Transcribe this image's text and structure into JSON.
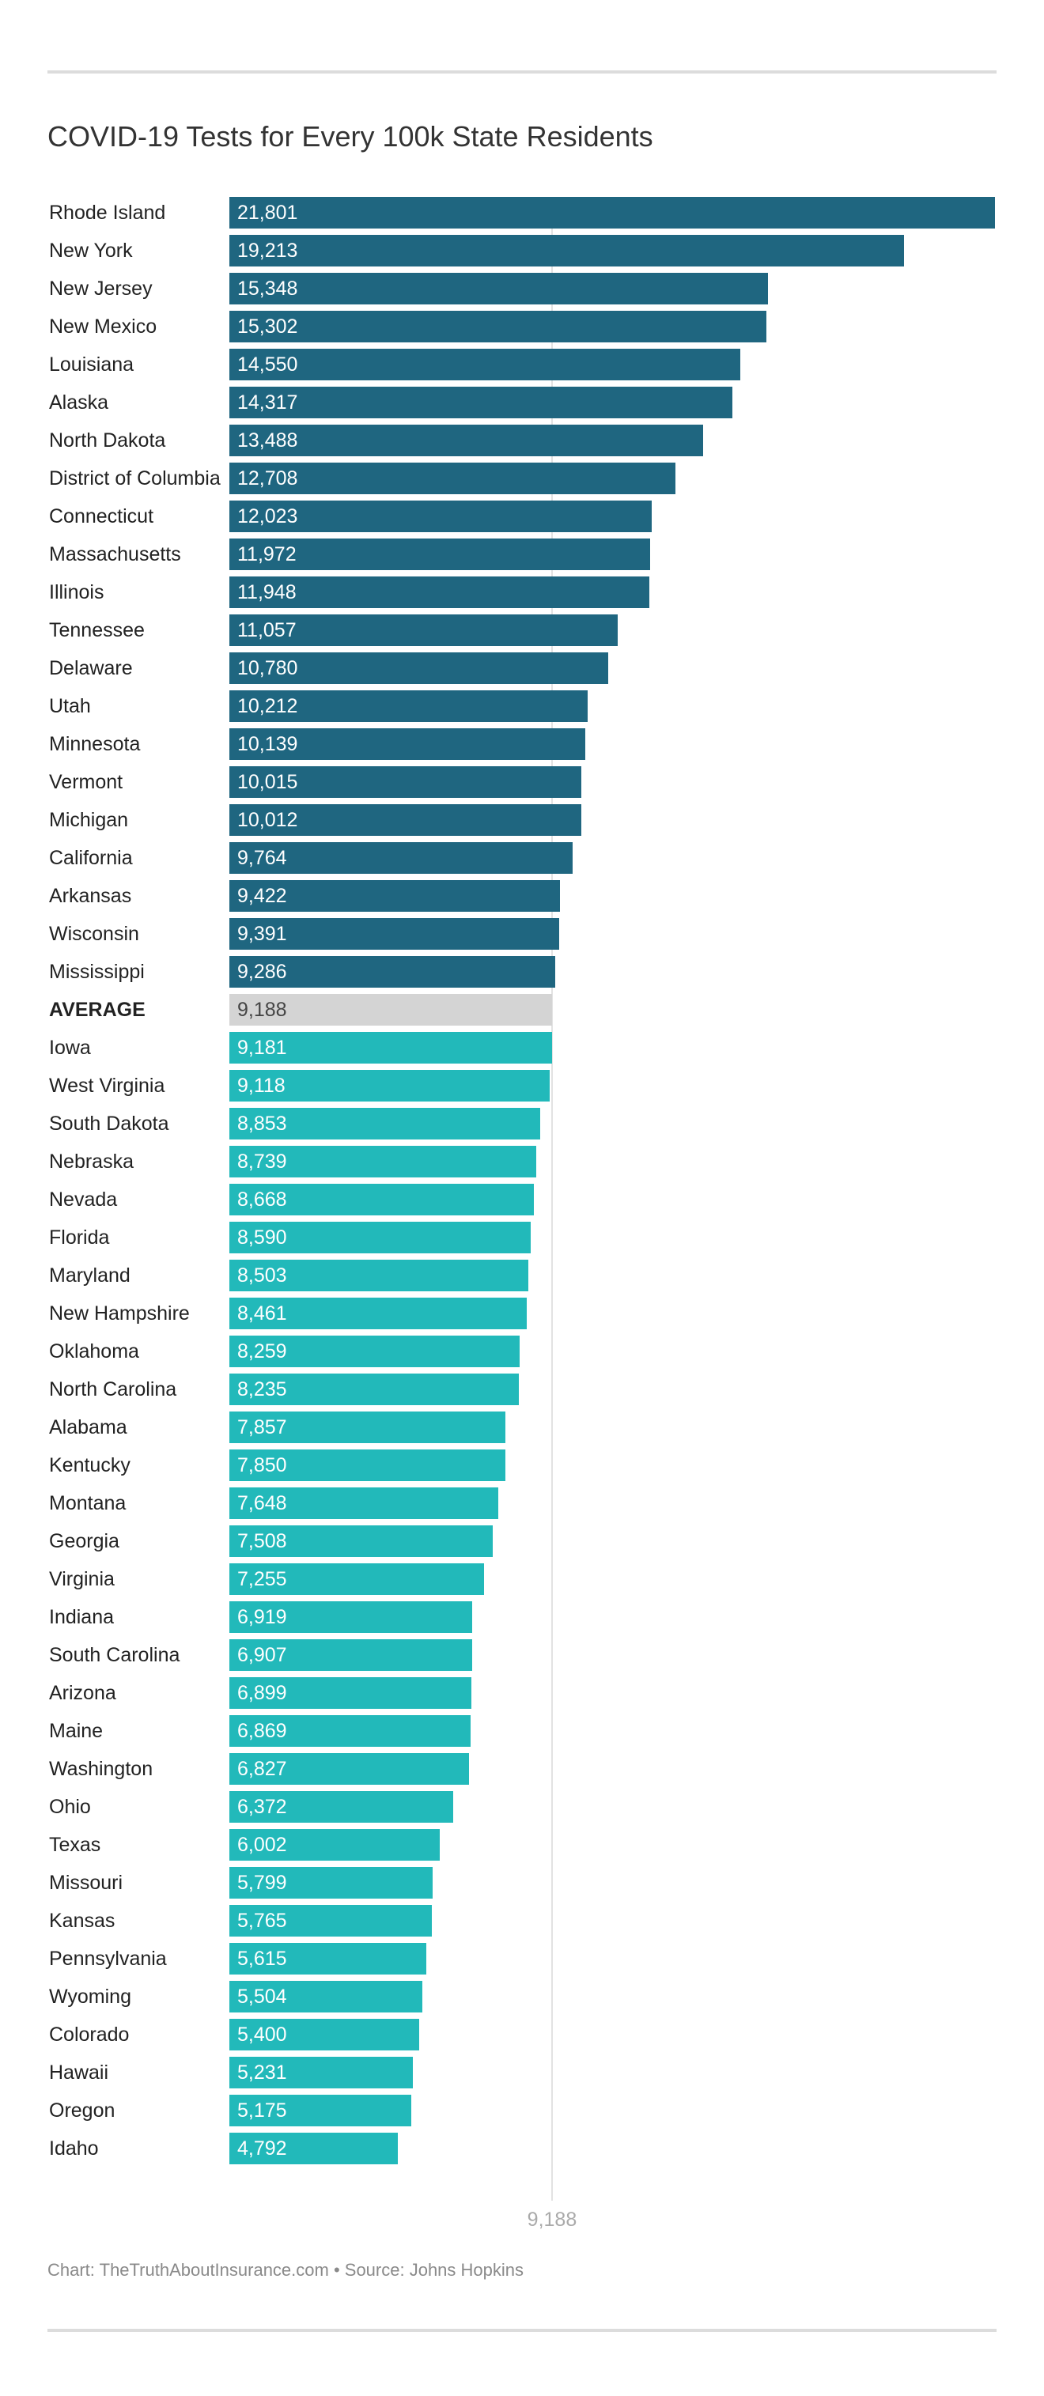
{
  "chart_data": {
    "type": "bar",
    "orientation": "horizontal",
    "title": "COVID-19 Tests for Every 100k State Residents",
    "categories": [
      "Rhode Island",
      "New York",
      "New Jersey",
      "New Mexico",
      "Louisiana",
      "Alaska",
      "North Dakota",
      "District of Columbia",
      "Connecticut",
      "Massachusetts",
      "Illinois",
      "Tennessee",
      "Delaware",
      "Utah",
      "Minnesota",
      "Vermont",
      "Michigan",
      "California",
      "Arkansas",
      "Wisconsin",
      "Mississippi",
      "AVERAGE",
      "Iowa",
      "West Virginia",
      "South Dakota",
      "Nebraska",
      "Nevada",
      "Florida",
      "Maryland",
      "New Hampshire",
      "Oklahoma",
      "North Carolina",
      "Alabama",
      "Kentucky",
      "Montana",
      "Georgia",
      "Virginia",
      "Indiana",
      "South Carolina",
      "Arizona",
      "Maine",
      "Washington",
      "Ohio",
      "Texas",
      "Missouri",
      "Kansas",
      "Pennsylvania",
      "Wyoming",
      "Colorado",
      "Hawaii",
      "Oregon",
      "Idaho"
    ],
    "values": [
      21801,
      19213,
      15348,
      15302,
      14550,
      14317,
      13488,
      12708,
      12023,
      11972,
      11948,
      11057,
      10780,
      10212,
      10139,
      10015,
      10012,
      9764,
      9422,
      9391,
      9286,
      9188,
      9181,
      9118,
      8853,
      8739,
      8668,
      8590,
      8503,
      8461,
      8259,
      8235,
      7857,
      7850,
      7648,
      7508,
      7255,
      6919,
      6907,
      6899,
      6869,
      6827,
      6372,
      6002,
      5799,
      5765,
      5615,
      5504,
      5400,
      5231,
      5175,
      4792
    ],
    "labels": [
      "21,801",
      "19,213",
      "15,348",
      "15,302",
      "14,550",
      "14,317",
      "13,488",
      "12,708",
      "12,023",
      "11,972",
      "11,948",
      "11,057",
      "10,780",
      "10,212",
      "10,139",
      "10,015",
      "10,012",
      "9,764",
      "9,422",
      "9,391",
      "9,286",
      "9,188",
      "9,181",
      "9,118",
      "8,853",
      "8,739",
      "8,668",
      "8,590",
      "8,503",
      "8,461",
      "8,259",
      "8,235",
      "7,857",
      "7,850",
      "7,648",
      "7,508",
      "7,255",
      "6,919",
      "6,907",
      "6,899",
      "6,869",
      "6,827",
      "6,372",
      "6,002",
      "5,799",
      "5,765",
      "5,615",
      "5,504",
      "5,400",
      "5,231",
      "5,175",
      "4,792"
    ],
    "xlim": [
      0,
      21801
    ],
    "reference_line": {
      "value": 9188,
      "label": "9,188"
    },
    "grid": false,
    "colors": {
      "above_average": "#1f6680",
      "average": "#d4d4d4",
      "below_average": "#22b9ba"
    }
  },
  "footer": "Chart: TheTruthAboutInsurance.com • Source: Johns Hopkins"
}
